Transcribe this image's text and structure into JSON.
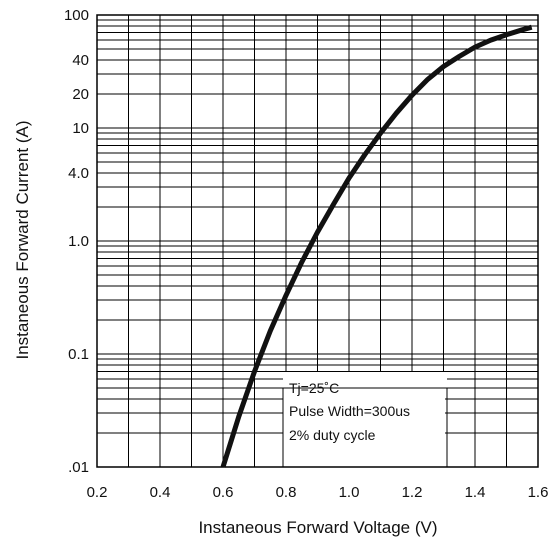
{
  "chart_data": {
    "type": "line",
    "title": "",
    "xlabel": "Instaneous Forward Voltage (V)",
    "ylabel": "Instaneous Forward Current (A)",
    "xlim": [
      0.2,
      1.6
    ],
    "ylim": [
      0.01,
      100
    ],
    "y_scale": "log",
    "grid": true,
    "x_ticks": [
      0.2,
      0.4,
      0.6,
      0.8,
      1.0,
      1.2,
      1.4,
      1.6
    ],
    "x_tick_labels": [
      "0.2",
      "0.4",
      "0.6",
      "0.8",
      "1.0",
      "1.2",
      "1.4",
      "1.6"
    ],
    "y_ticks": [
      0.01,
      0.1,
      1,
      4,
      10,
      20,
      40,
      100
    ],
    "y_tick_labels": [
      ".01",
      "0.1",
      "1.0",
      "4.0",
      "10",
      "20",
      "40",
      "100"
    ],
    "series": [
      {
        "x": [
          0.6,
          0.65,
          0.7,
          0.75,
          0.8,
          0.85,
          0.9,
          0.95,
          1.0,
          1.05,
          1.1,
          1.15,
          1.2,
          1.25,
          1.3,
          1.35,
          1.4,
          1.45,
          1.5,
          1.55,
          1.58
        ],
        "y": [
          0.01,
          0.028,
          0.07,
          0.16,
          0.33,
          0.65,
          1.2,
          2.1,
          3.6,
          5.8,
          9.0,
          13.5,
          19.5,
          27.0,
          35.0,
          43.0,
          52.0,
          60.0,
          67.0,
          74.0,
          78.0
        ]
      }
    ],
    "annotations": [
      "Tj=25˚C",
      "Pulse Width=300us",
      "2% duty cycle"
    ],
    "line_color": "#111111"
  }
}
